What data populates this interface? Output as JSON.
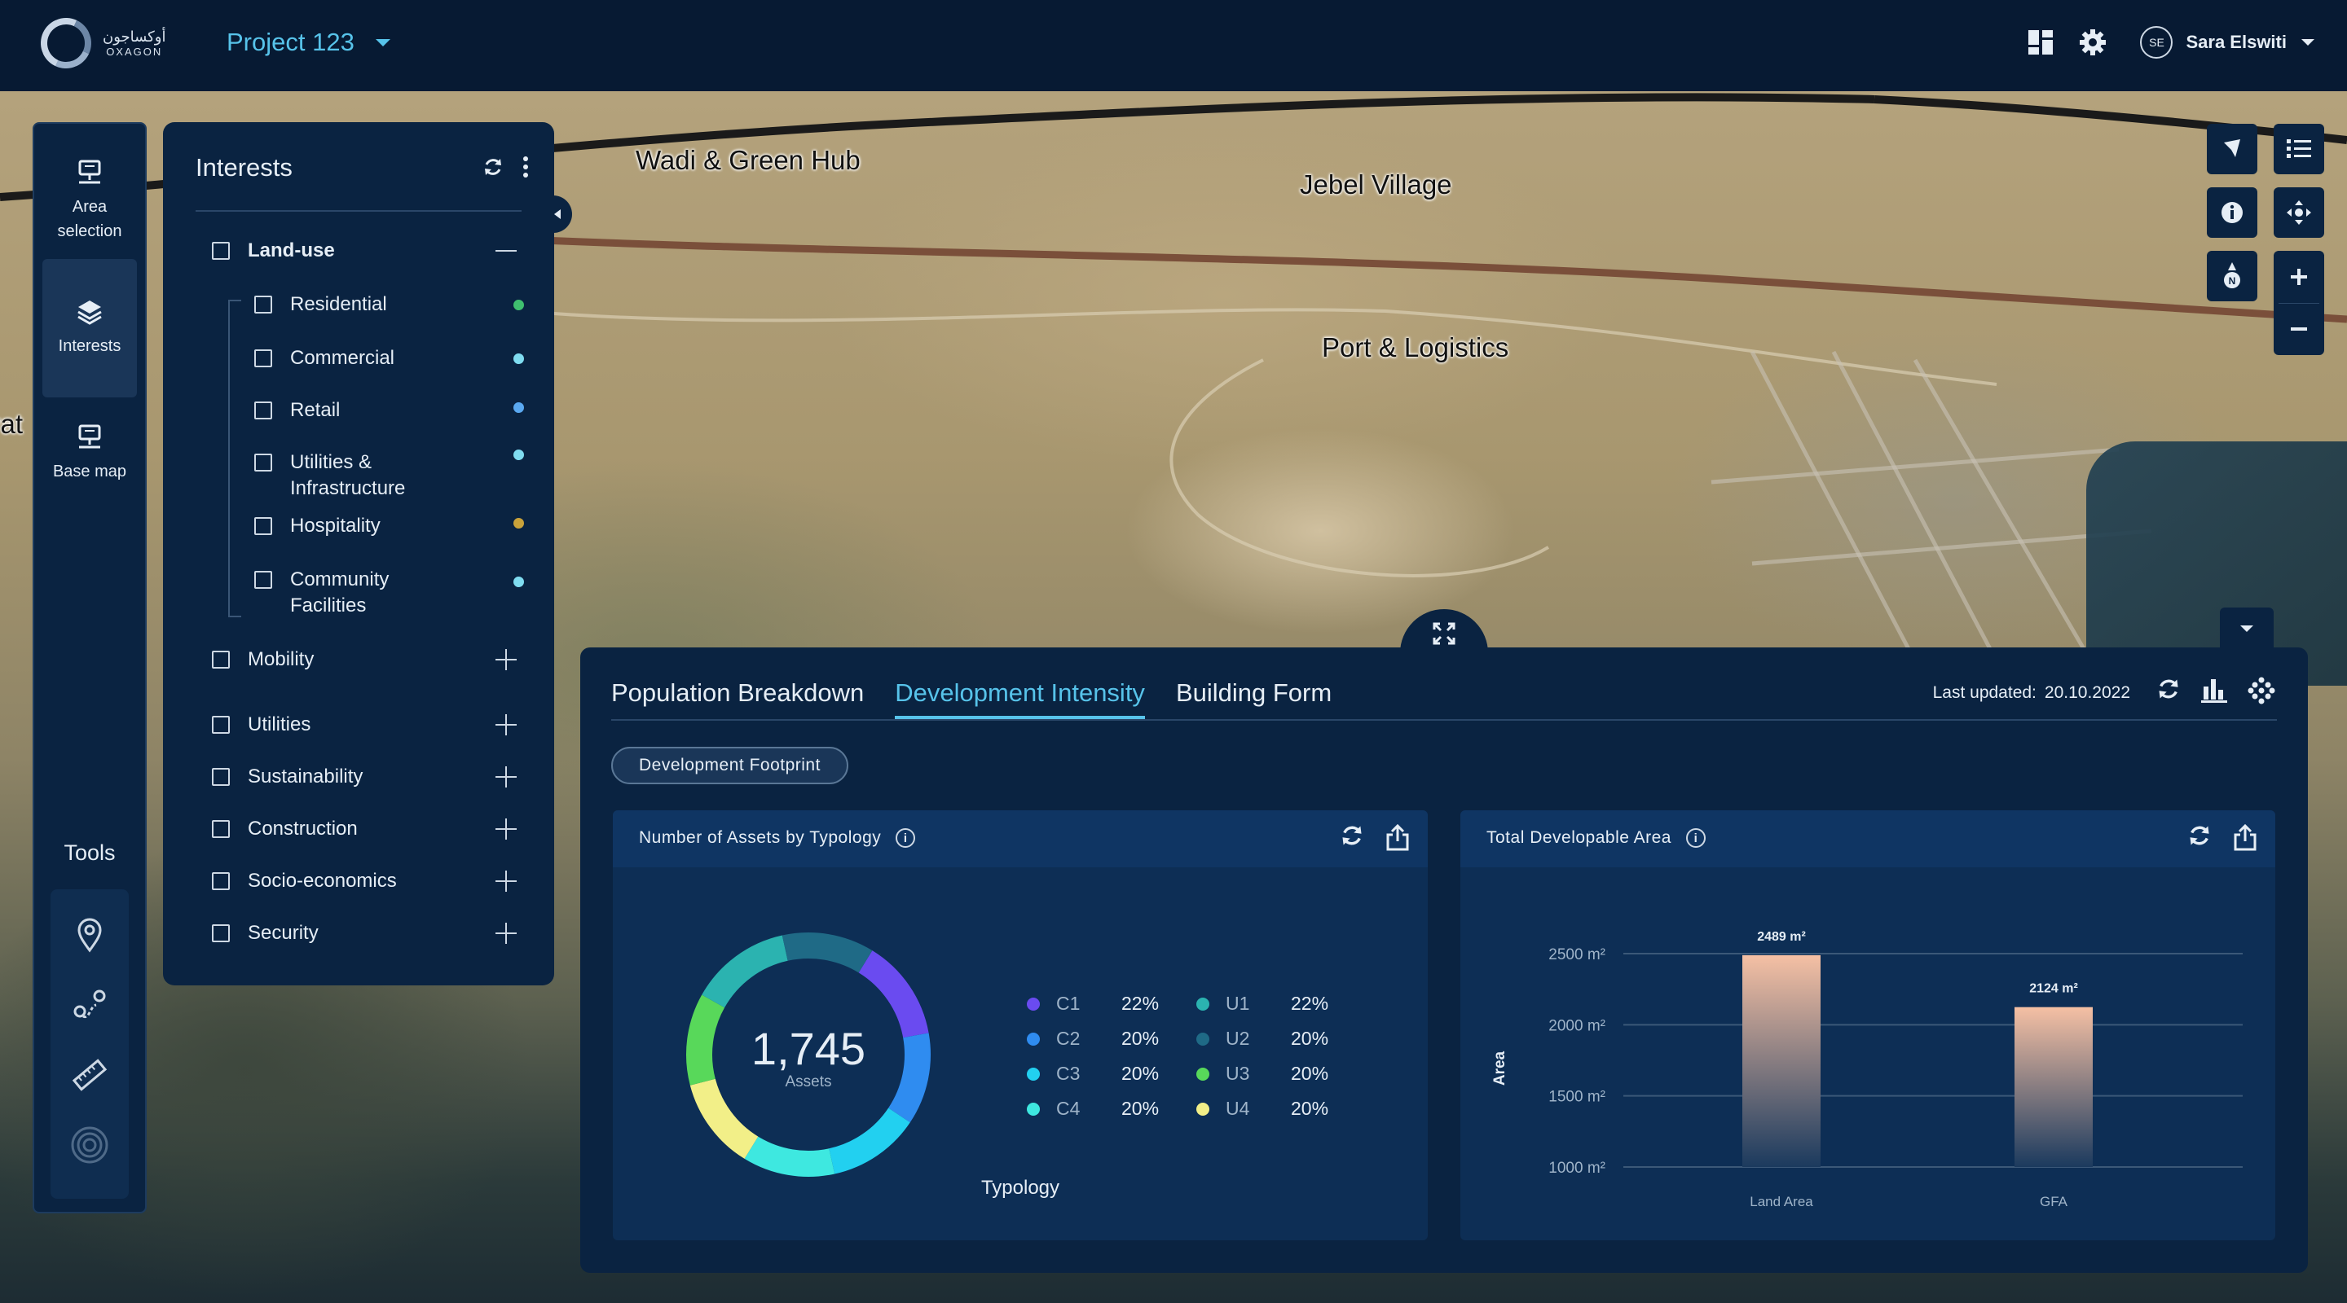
{
  "header": {
    "logo_arabic": "أوكساجون",
    "logo_english": "OXAGON",
    "project_name": "Project 123",
    "user_initials": "SE",
    "user_name": "Sara Elswiti"
  },
  "rail": {
    "items": [
      {
        "label": "Area selection",
        "icon": "area-selection-icon"
      },
      {
        "label": "Interests",
        "icon": "layers-icon",
        "active": true
      },
      {
        "label": "Base map",
        "icon": "base-map-icon"
      }
    ],
    "tools_title": "Tools",
    "tools": [
      "location-pin-icon",
      "route-icon",
      "ruler-icon",
      "radius-icon"
    ]
  },
  "map": {
    "labels": [
      "Wadi & Green Hub",
      "Jebel Village",
      "Port & Logistics",
      "vat"
    ]
  },
  "interests": {
    "title": "Interests",
    "groups": [
      {
        "label": "Land-use",
        "expanded": true,
        "children": [
          {
            "label": "Residential",
            "color": "#3fbf6f"
          },
          {
            "label": "Commercial",
            "color": "#7fdcf0"
          },
          {
            "label": "Retail",
            "color": "#5aa8f0"
          },
          {
            "label": "Utilities & Infrastructure",
            "color": "#7fdcf0"
          },
          {
            "label": "Hospitality",
            "color": "#c9a23a"
          },
          {
            "label": "Community Facilities",
            "color": "#7fdcf0"
          }
        ]
      },
      {
        "label": "Mobility"
      },
      {
        "label": "Utilities"
      },
      {
        "label": "Sustainability"
      },
      {
        "label": "Construction"
      },
      {
        "label": "Socio-economics"
      },
      {
        "label": "Security"
      }
    ]
  },
  "analytics": {
    "tabs": [
      "Population Breakdown",
      "Development Intensity",
      "Building Form"
    ],
    "active_tab": 1,
    "last_updated_label": "Last updated:",
    "last_updated_date": "20.10.2022",
    "chip": "Development Footprint",
    "card1": {
      "title": "Number of Assets by Typology",
      "center_value": "1,745",
      "center_label": "Assets",
      "axis_label": "Typology"
    },
    "card2": {
      "title": "Total Developable Area",
      "y_label": "Area"
    }
  },
  "chart_data": [
    {
      "type": "pie",
      "title": "Number of Assets by Typology",
      "total": 1745,
      "total_label": "Assets",
      "xlabel": "Typology",
      "slices": [
        {
          "name": "C1",
          "pct": 22,
          "label": "22%",
          "color": "#6a4bf0"
        },
        {
          "name": "C2",
          "pct": 20,
          "label": "20%",
          "color": "#2f8cf0"
        },
        {
          "name": "C3",
          "pct": 20,
          "label": "20%",
          "color": "#22d0f0"
        },
        {
          "name": "C4",
          "pct": 20,
          "label": "20%",
          "color": "#3ee8e0"
        },
        {
          "name": "U1",
          "pct": 22,
          "label": "22%",
          "color": "#2bb3b0"
        },
        {
          "name": "U2",
          "pct": 20,
          "label": "20%",
          "color": "#1f6a86"
        },
        {
          "name": "U3",
          "pct": 20,
          "label": "20%",
          "color": "#58d85a"
        },
        {
          "name": "U4",
          "pct": 20,
          "label": "20%",
          "color": "#f2ef88"
        }
      ],
      "ring_order": [
        "C1",
        "C2",
        "C3",
        "C4",
        "U1",
        "U2",
        "U3",
        "U4"
      ]
    },
    {
      "type": "bar",
      "title": "Total Developable Area",
      "categories": [
        "Land Area",
        "GFA"
      ],
      "values": [
        2489,
        2124
      ],
      "value_labels": [
        "2489 m²",
        "2124 m²"
      ],
      "ylabel": "Area",
      "ylim": [
        1000,
        2500
      ],
      "yticks": [
        1000,
        1500,
        2000,
        2500
      ],
      "ytick_labels": [
        "1000 m²",
        "1500 m²",
        "2000 m²",
        "2500 m²"
      ],
      "grid": true,
      "bar_color_top": "#f5c0a4",
      "bar_color_bottom": "#1b3a5e"
    }
  ]
}
